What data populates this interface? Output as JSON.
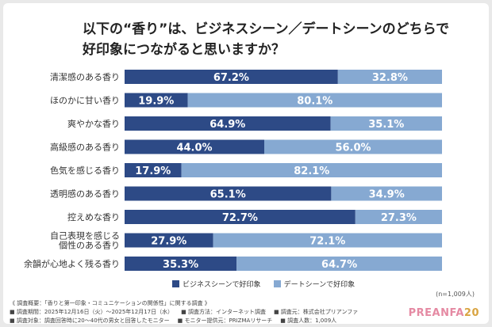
{
  "title_line1": "以下の“香り”は、ビジネスシーン／デートシーンのどちらで",
  "title_line2": "好印象につながると思いますか？",
  "chart_data": {
    "type": "bar",
    "stacked": true,
    "orientation": "horizontal",
    "categories": [
      [
        "清潔感のある香り"
      ],
      [
        "ほのかに甘い香り"
      ],
      [
        "爽やかな香り"
      ],
      [
        "高級感のある香り"
      ],
      [
        "色気を感じる香り"
      ],
      [
        "透明感のある香り"
      ],
      [
        "控えめな香り"
      ],
      [
        "自己表現を感じる",
        "個性のある香り"
      ],
      [
        "余韻が心地よく残る香り"
      ]
    ],
    "series": [
      {
        "name": "ビジネスシーンで好印象",
        "color": "#2d4a86",
        "values": [
          67.2,
          19.9,
          64.9,
          44.0,
          17.9,
          65.1,
          72.7,
          27.9,
          35.3
        ]
      },
      {
        "name": "デートシーンで好印象",
        "color": "#86a9d2",
        "values": [
          32.8,
          80.1,
          35.1,
          56.0,
          82.1,
          34.9,
          27.3,
          72.1,
          64.7
        ]
      }
    ],
    "unit": "%",
    "xlim": [
      0,
      100
    ],
    "legend_position": "bottom"
  },
  "n_note": "(n=1,009人)",
  "footer": {
    "line1": "《 調査概要：「香りと第一印象・コミュニケーションの関係性」に関する調査 》",
    "items": [
      [
        "■ 調査期間：2025年12月16日（火）〜2025年12月17日（水）",
        "■ 調査方法：インターネット調査",
        "■ 調査元：株式会社プリアンファ"
      ],
      [
        "■ 調査対象：調査回答時に20〜40代の男女と回答したモニター",
        "■ モニター提供元：PRIZMAリサーチ",
        "■ 調査人数：1,009人"
      ]
    ]
  },
  "logo_text": "PREANFA",
  "logo_number": "20"
}
